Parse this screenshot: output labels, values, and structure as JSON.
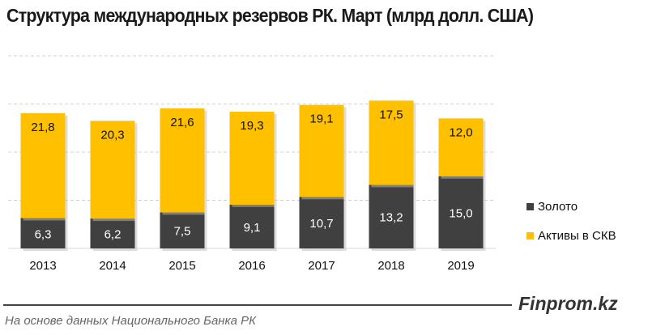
{
  "chart_data": {
    "type": "bar",
    "stacked": true,
    "title": "Структура международных резервов РК. Март (млрд долл. США)",
    "categories": [
      "2013",
      "2014",
      "2015",
      "2016",
      "2017",
      "2018",
      "2019"
    ],
    "series": [
      {
        "name": "Золото",
        "color": "#404040",
        "values": [
          6.3,
          6.2,
          7.5,
          9.1,
          10.7,
          13.2,
          15.0
        ],
        "labels": [
          "6,3",
          "6,2",
          "7,5",
          "9,1",
          "10,7",
          "13,2",
          "15,0"
        ]
      },
      {
        "name": "Активы в СКВ",
        "color": "#FFC000",
        "values": [
          21.8,
          20.3,
          21.6,
          19.3,
          19.1,
          17.5,
          12.0
        ],
        "labels": [
          "21,8",
          "20,3",
          "21,6",
          "19,3",
          "19,1",
          "17,5",
          "12,0"
        ]
      }
    ],
    "xlabel": "",
    "ylabel": "",
    "ylim": [
      0,
      40
    ],
    "grid": true,
    "gridlines": [
      10,
      20,
      30,
      40
    ],
    "legend": "right"
  },
  "footer": {
    "brand": "Finprom.kz",
    "source": "На основе данных  Национального  Банка РК"
  }
}
